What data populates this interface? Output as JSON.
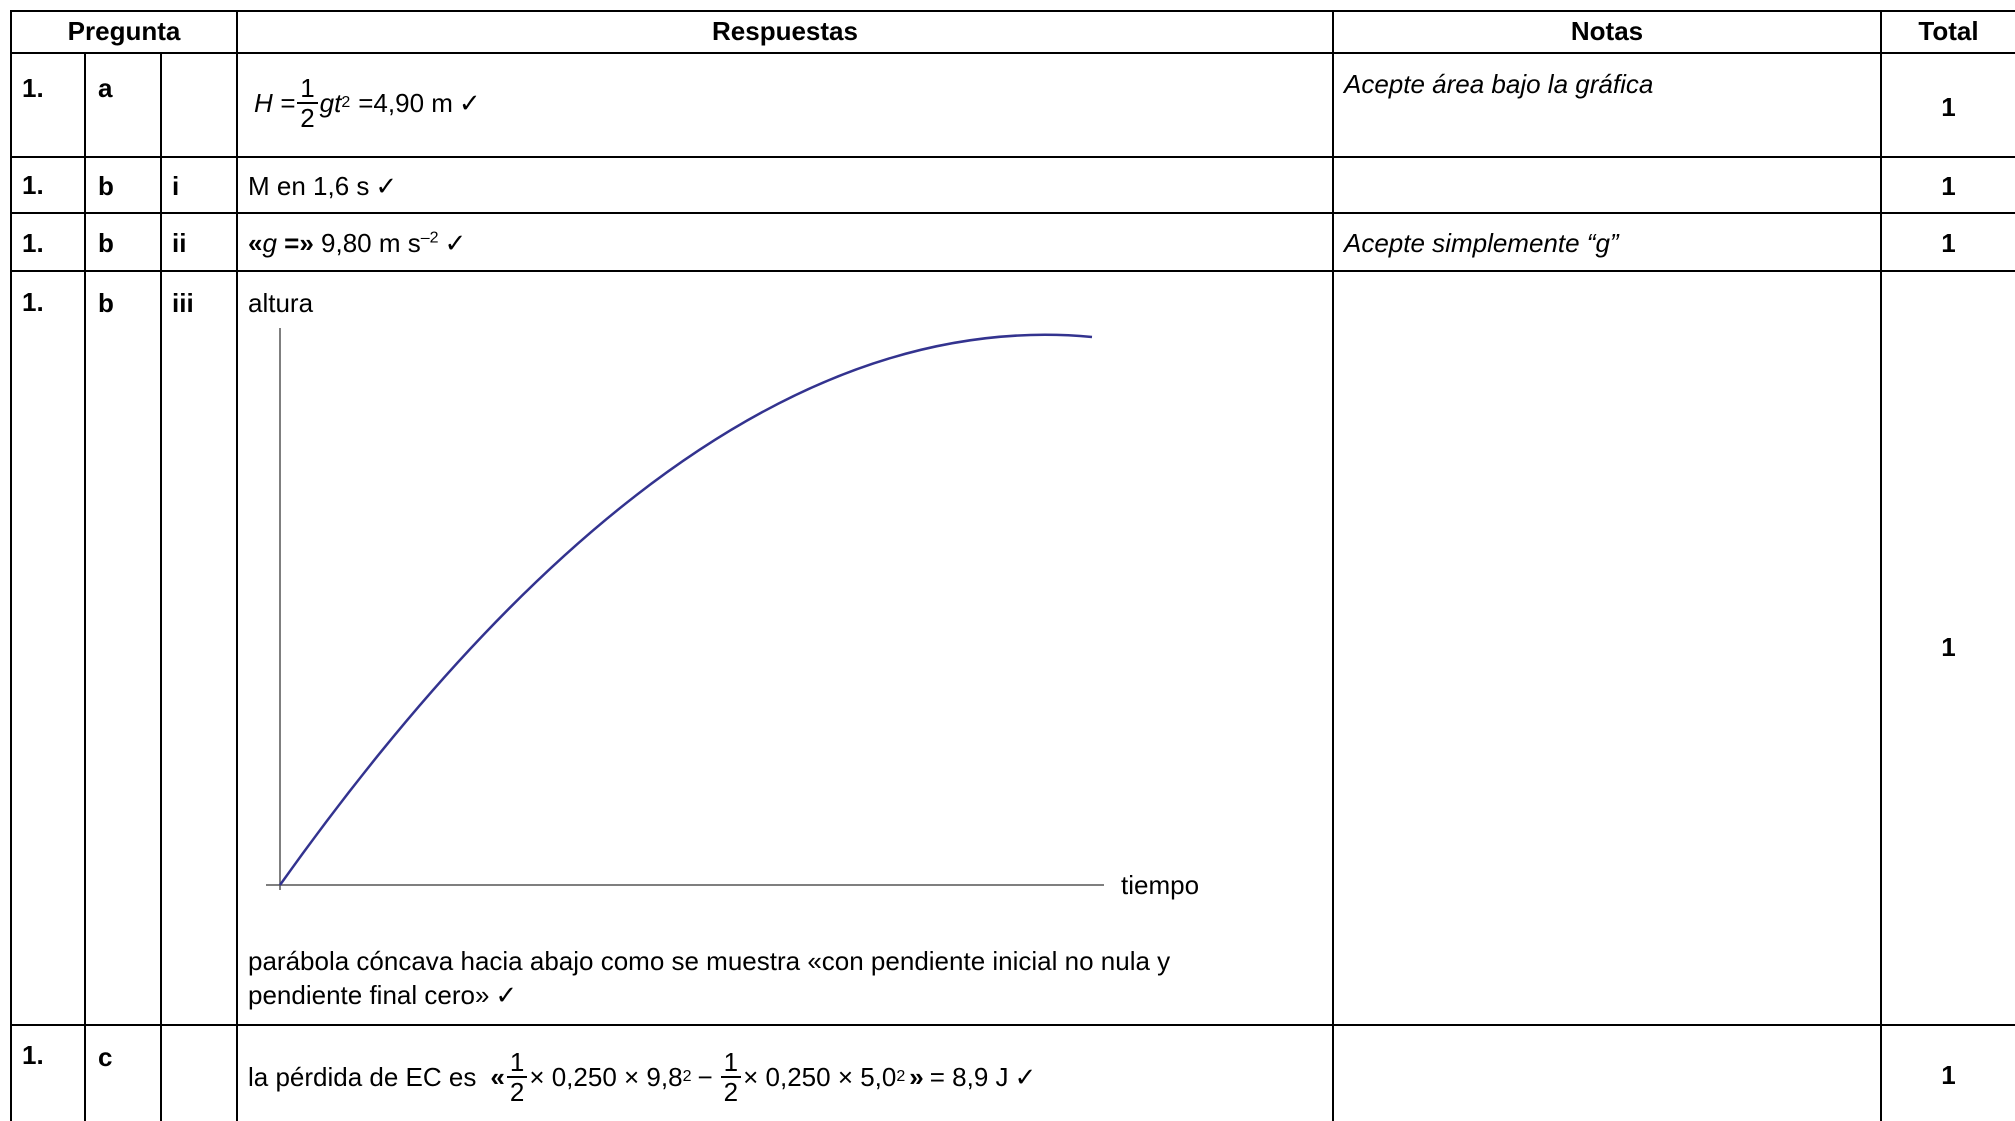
{
  "header": {
    "pregunta": "Pregunta",
    "respuestas": "Respuestas",
    "notas": "Notas",
    "total": "Total"
  },
  "rows": [
    {
      "num": "1.",
      "part": "a",
      "sub": "",
      "answer": {
        "lhs": "H =",
        "frac_num": "1",
        "frac_den": "2",
        "expr": "gt",
        "exp": "2",
        "rhs": "=4,90 m",
        "check": "✓"
      },
      "note": "Acepte área bajo la gráfica",
      "total": "1"
    },
    {
      "num": "1.",
      "part": "b",
      "sub": "i",
      "answer": {
        "text": "M en 1,6 s",
        "check": "✓"
      },
      "note": "",
      "total": "1"
    },
    {
      "num": "1.",
      "part": "b",
      "sub": "ii",
      "answer": {
        "open": "«",
        "var": "g",
        "eq": " =»",
        "value": " 9,80 m s",
        "exp": "–2",
        "check": "✓"
      },
      "note": "Acepte simplemente “g”",
      "total": "1"
    },
    {
      "num": "1.",
      "part": "b",
      "sub": "iii",
      "answer": {
        "graph_ylabel": "altura",
        "graph_xlabel": "tiempo",
        "line1": "parábola cóncava hacia abajo como se muestra «con pendiente inicial no nula y",
        "line2": "pendiente final cero»",
        "check": "✓"
      },
      "note": "",
      "total": "1"
    },
    {
      "num": "1.",
      "part": "c",
      "sub": "",
      "answer": {
        "prefix": "la pérdida de EC es",
        "open": "«",
        "f1_num": "1",
        "f1_den": "2",
        "term1": "× 0,250 × 9,8",
        "exp1": "2",
        "minus": "−",
        "f2_num": "1",
        "f2_den": "2",
        "term2": "× 0,250 × 5,0",
        "exp2": "2",
        "close": "»",
        "result": "= 8,9 J",
        "check": "✓"
      },
      "note": "",
      "total": "1"
    }
  ],
  "colors": {
    "curve": "#33338f",
    "axis": "#555555"
  }
}
